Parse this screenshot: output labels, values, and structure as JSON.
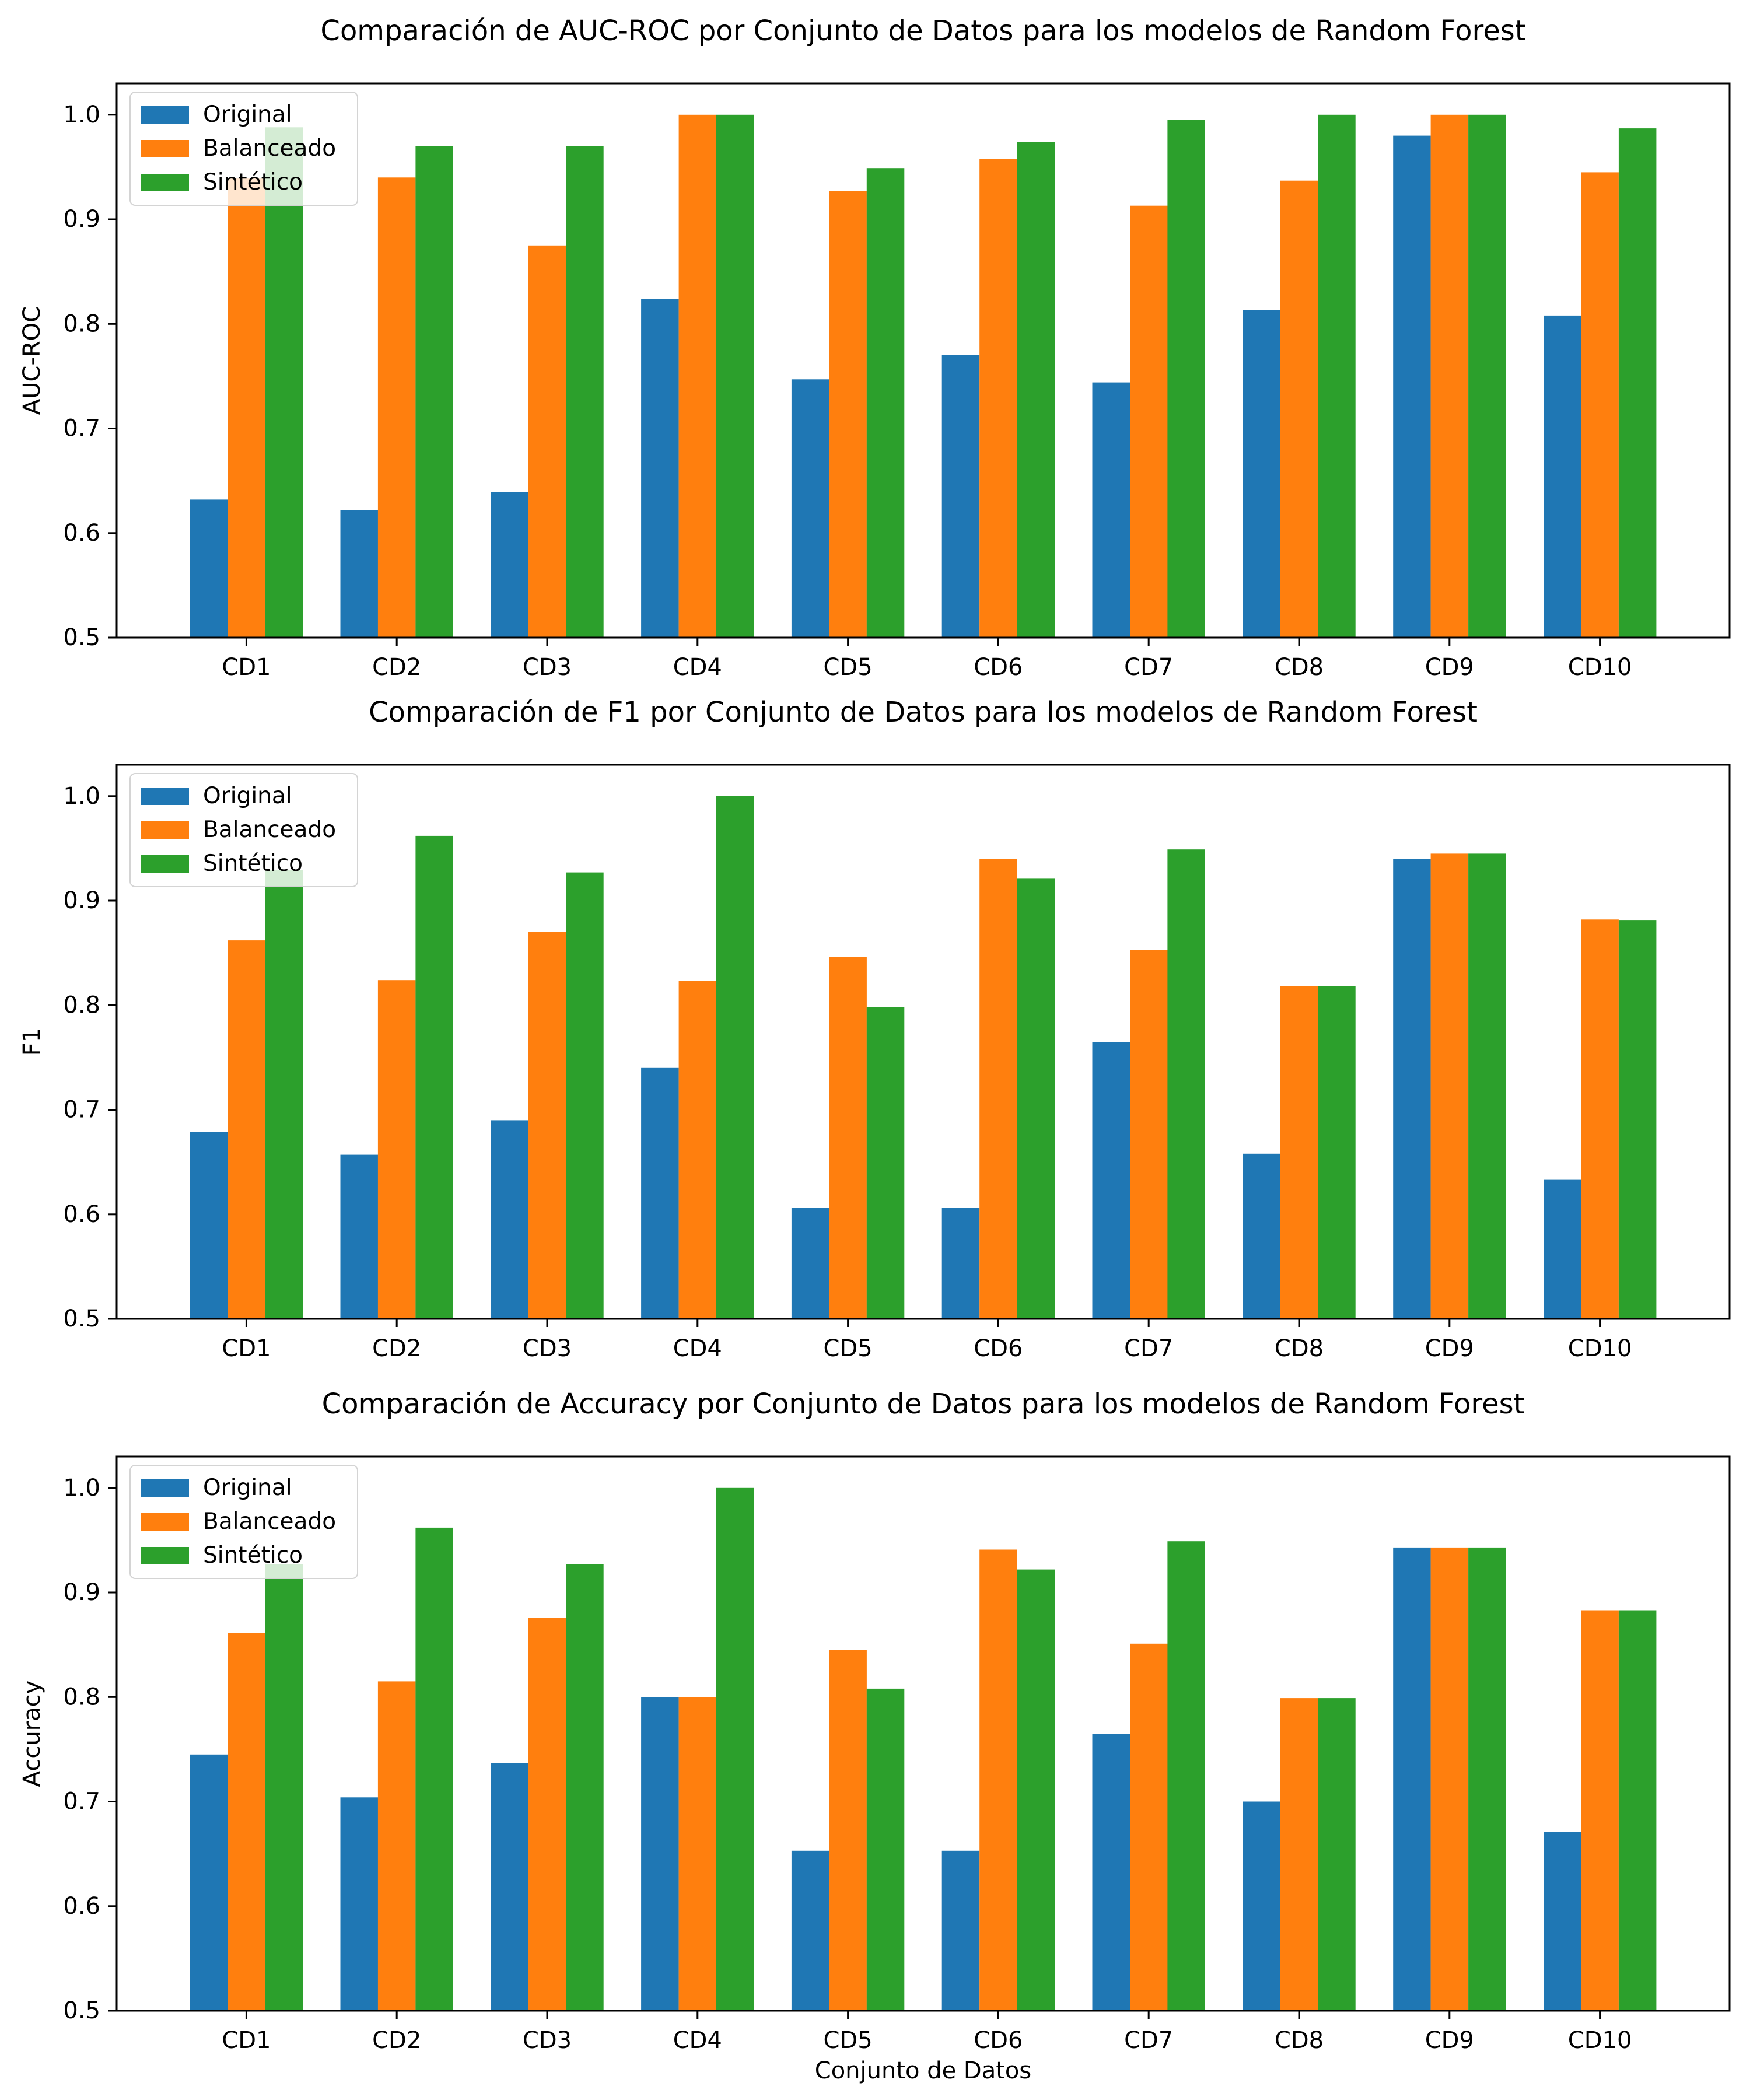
{
  "figure": {
    "background": "#ffffff"
  },
  "legend": {
    "items": [
      "Original",
      "Balanceado",
      "Sintético"
    ],
    "position": "upper left"
  },
  "series_colors": [
    "#1f77b4",
    "#ff7f0e",
    "#2ca02c"
  ],
  "axis_color": "#000000",
  "xlabel": "Conjunto de Datos",
  "ytick_labels": [
    "0.5",
    "0.6",
    "0.7",
    "0.8",
    "0.9",
    "1.0"
  ],
  "chart_data": [
    {
      "type": "bar",
      "title": "Comparación de AUC-ROC por Conjunto de Datos para los modelos de Random Forest",
      "ylabel": "AUC-ROC",
      "xlabel": "",
      "categories": [
        "CD1",
        "CD2",
        "CD3",
        "CD4",
        "CD5",
        "CD6",
        "CD7",
        "CD8",
        "CD9",
        "CD10"
      ],
      "ylim": [
        0.5,
        1.03
      ],
      "yticks": [
        0.5,
        0.6,
        0.7,
        0.8,
        0.9,
        1.0
      ],
      "grid": false,
      "legend_position": "upper left",
      "series": [
        {
          "name": "Original",
          "values": [
            0.632,
            0.622,
            0.639,
            0.824,
            0.747,
            0.77,
            0.744,
            0.813,
            0.98,
            0.808
          ]
        },
        {
          "name": "Balanceado",
          "values": [
            0.939,
            0.94,
            0.875,
            1.0,
            0.927,
            0.958,
            0.913,
            0.937,
            1.0,
            0.945
          ]
        },
        {
          "name": "Sintético",
          "values": [
            0.988,
            0.97,
            0.97,
            1.0,
            0.949,
            0.974,
            0.995,
            1.0,
            1.0,
            0.987
          ]
        }
      ]
    },
    {
      "type": "bar",
      "title": "Comparación de F1 por Conjunto de Datos para los modelos de Random Forest",
      "ylabel": "F1",
      "xlabel": "",
      "categories": [
        "CD1",
        "CD2",
        "CD3",
        "CD4",
        "CD5",
        "CD6",
        "CD7",
        "CD8",
        "CD9",
        "CD10"
      ],
      "ylim": [
        0.5,
        1.03
      ],
      "yticks": [
        0.5,
        0.6,
        0.7,
        0.8,
        0.9,
        1.0
      ],
      "grid": false,
      "legend_position": "upper left",
      "series": [
        {
          "name": "Original",
          "values": [
            0.679,
            0.657,
            0.69,
            0.74,
            0.606,
            0.606,
            0.765,
            0.658,
            0.94,
            0.633
          ]
        },
        {
          "name": "Balanceado",
          "values": [
            0.862,
            0.824,
            0.87,
            0.823,
            0.846,
            0.94,
            0.853,
            0.818,
            0.945,
            0.882
          ]
        },
        {
          "name": "Sintético",
          "values": [
            0.929,
            0.962,
            0.927,
            1.0,
            0.798,
            0.921,
            0.949,
            0.818,
            0.945,
            0.881
          ]
        }
      ]
    },
    {
      "type": "bar",
      "title": "Comparación de Accuracy por Conjunto de Datos para los modelos de Random Forest",
      "ylabel": "Accuracy",
      "xlabel": "Conjunto de Datos",
      "categories": [
        "CD1",
        "CD2",
        "CD3",
        "CD4",
        "CD5",
        "CD6",
        "CD7",
        "CD8",
        "CD9",
        "CD10"
      ],
      "ylim": [
        0.5,
        1.03
      ],
      "yticks": [
        0.5,
        0.6,
        0.7,
        0.8,
        0.9,
        1.0
      ],
      "grid": false,
      "legend_position": "upper left",
      "series": [
        {
          "name": "Original",
          "values": [
            0.745,
            0.704,
            0.737,
            0.8,
            0.653,
            0.653,
            0.765,
            0.7,
            0.943,
            0.671
          ]
        },
        {
          "name": "Balanceado",
          "values": [
            0.861,
            0.815,
            0.876,
            0.8,
            0.845,
            0.941,
            0.851,
            0.799,
            0.943,
            0.883
          ]
        },
        {
          "name": "Sintético",
          "values": [
            0.927,
            0.962,
            0.927,
            1.0,
            0.808,
            0.922,
            0.949,
            0.799,
            0.943,
            0.883
          ]
        }
      ]
    }
  ]
}
